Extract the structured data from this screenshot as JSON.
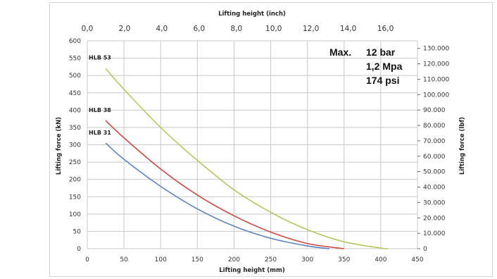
{
  "chart_data": {
    "type": "line",
    "title": "",
    "xlabel": "Lifting height (mm)",
    "ylabel": "Lifting force (kN)",
    "x2label": "Lifting height (inch)",
    "y2label": "Lifting force (lbf)",
    "xlim": [
      0,
      450
    ],
    "ylim": [
      0,
      600
    ],
    "x2lim": [
      0,
      17.716
    ],
    "y2lim": [
      0,
      134885
    ],
    "x_ticks": [
      "0",
      "50",
      "100",
      "150",
      "200",
      "250",
      "300",
      "350",
      "400",
      "450"
    ],
    "y_ticks": [
      "0",
      "50",
      "100",
      "150",
      "200",
      "250",
      "300",
      "350",
      "400",
      "450",
      "500",
      "550",
      "600"
    ],
    "x2_ticks": [
      {
        "value": 0,
        "label": "0,0"
      },
      {
        "value": 2,
        "label": "2,0"
      },
      {
        "value": 4,
        "label": "4,0"
      },
      {
        "value": 6,
        "label": "6,0"
      },
      {
        "value": 8,
        "label": "8,0"
      },
      {
        "value": 10,
        "label": "10,0"
      },
      {
        "value": 12,
        "label": "12,0"
      },
      {
        "value": 14,
        "label": "14,0"
      },
      {
        "value": 16,
        "label": "16,0"
      }
    ],
    "y2_ticks": [
      {
        "value": 0,
        "label": "0"
      },
      {
        "value": 10000,
        "label": "10.000"
      },
      {
        "value": 20000,
        "label": "20.000"
      },
      {
        "value": 30000,
        "label": "30.000"
      },
      {
        "value": 40000,
        "label": "40.000"
      },
      {
        "value": 50000,
        "label": "50.000"
      },
      {
        "value": 60000,
        "label": "60.000"
      },
      {
        "value": 70000,
        "label": "70.000"
      },
      {
        "value": 80000,
        "label": "80.000"
      },
      {
        "value": 90000,
        "label": "90.000"
      },
      {
        "value": 100000,
        "label": "100.000"
      },
      {
        "value": 110000,
        "label": "110.000"
      },
      {
        "value": 120000,
        "label": "120.000"
      },
      {
        "value": 130000,
        "label": "130.000"
      }
    ],
    "grid": true,
    "series": [
      {
        "name": "HLB 53",
        "color": "#b5c75f",
        "x": [
          25,
          50,
          100,
          150,
          200,
          250,
          300,
          350,
          400,
          410
        ],
        "y": [
          520,
          460,
          350,
          255,
          170,
          105,
          55,
          20,
          2,
          0
        ]
      },
      {
        "name": "HLB 38",
        "color": "#cc4a3e",
        "x": [
          25,
          50,
          100,
          150,
          200,
          250,
          300,
          350
        ],
        "y": [
          370,
          320,
          230,
          155,
          95,
          48,
          15,
          0
        ]
      },
      {
        "name": "HLB 31",
        "color": "#5b83c4",
        "x": [
          25,
          50,
          100,
          150,
          200,
          250,
          300,
          330
        ],
        "y": [
          305,
          258,
          180,
          115,
          65,
          30,
          8,
          0
        ]
      }
    ],
    "annotation": {
      "label": "Max.",
      "lines": [
        "12 bar",
        "1,2 Mpa",
        "174 psi"
      ]
    }
  }
}
